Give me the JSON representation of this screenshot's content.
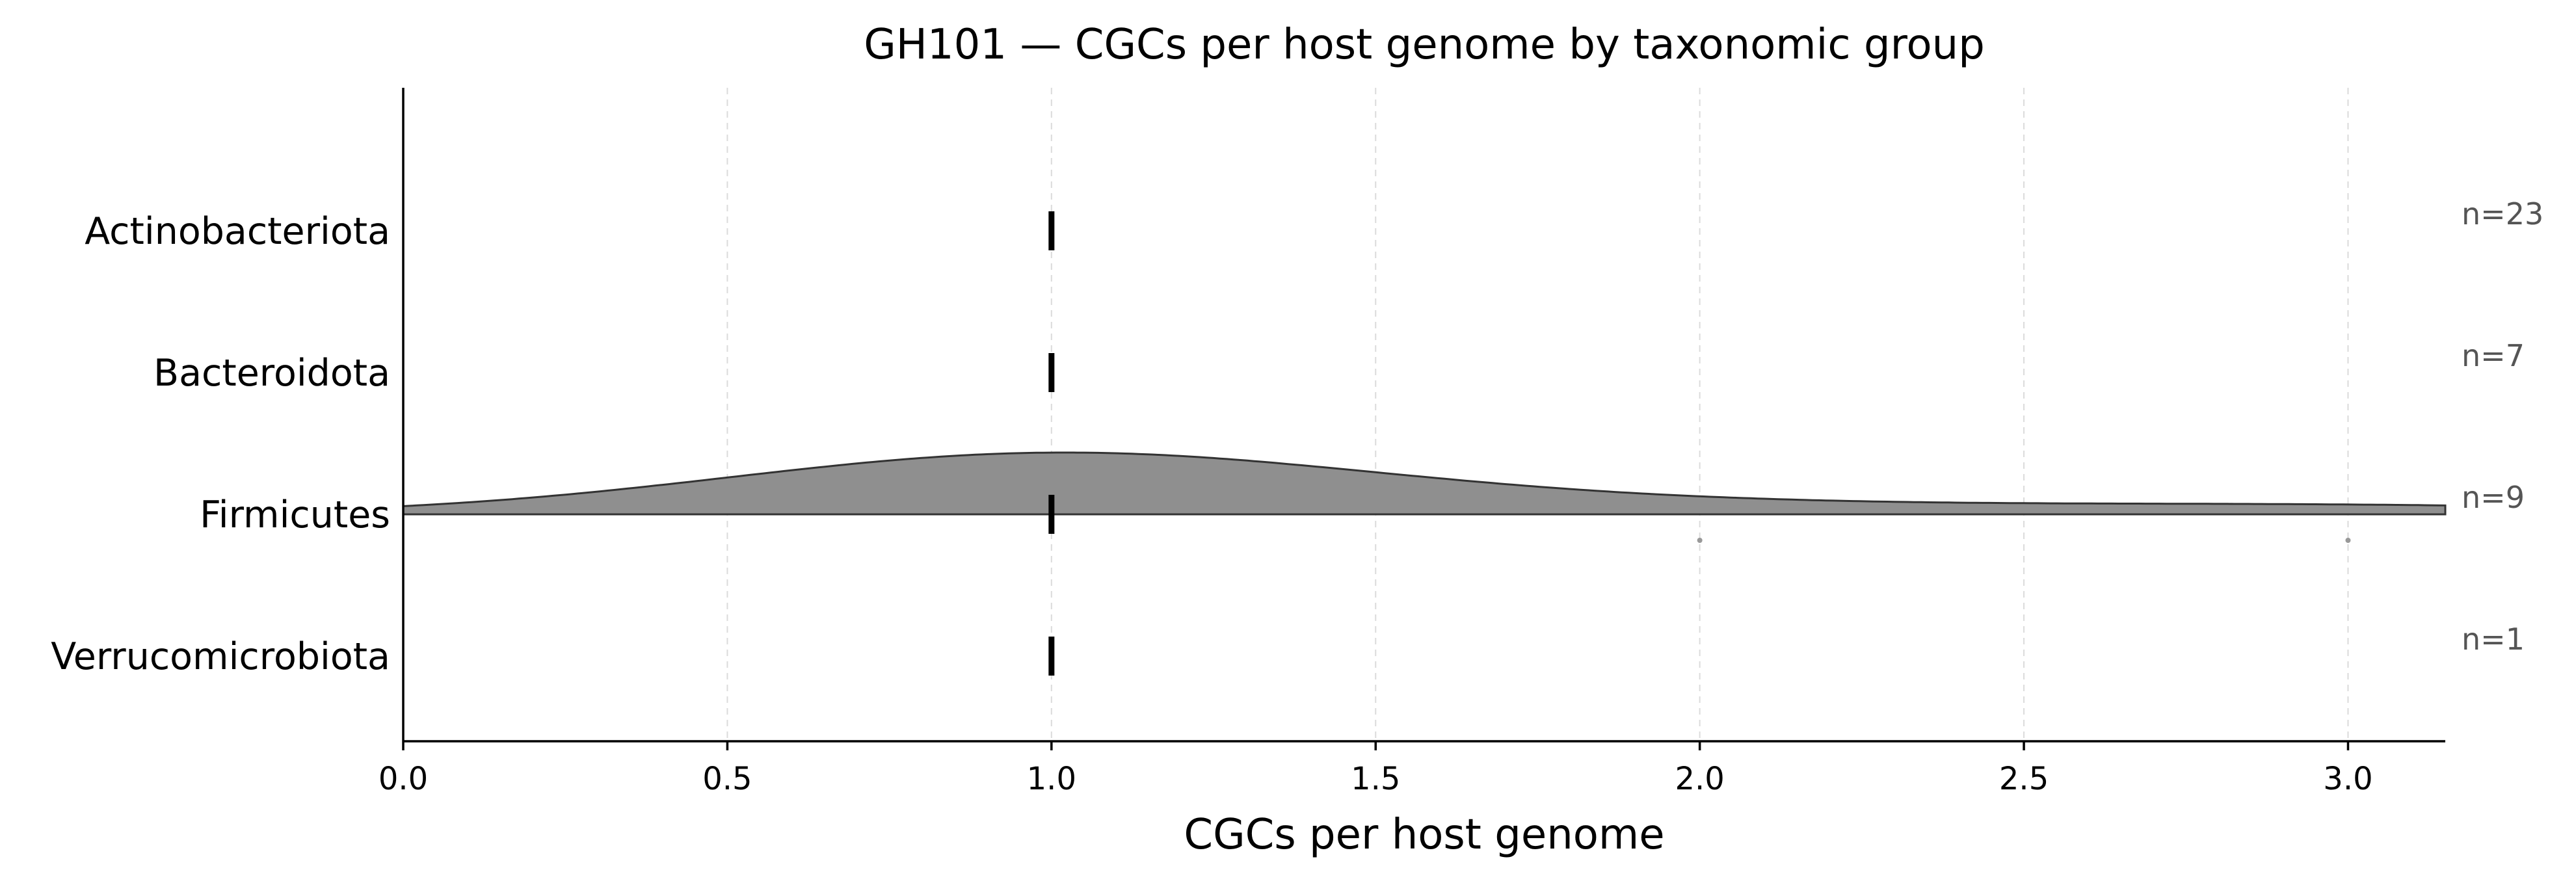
{
  "chart_data": {
    "type": "ridgeline",
    "title": "GH101 — CGCs per host genome by taxonomic group",
    "xlabel": "CGCs per host genome",
    "ylabel": "",
    "xlim": [
      0,
      3.15
    ],
    "xticks": [
      0.0,
      0.5,
      1.0,
      1.5,
      2.0,
      2.5,
      3.0
    ],
    "xtick_labels": [
      "0.0",
      "0.5",
      "1.0",
      "1.5",
      "2.0",
      "2.5",
      "3.0"
    ],
    "grid": "vertical dashed",
    "colors": {
      "ridge_fill": "#8f8f8f",
      "ridge_edge": "#333333",
      "median": "#000000",
      "point": "#999999",
      "n_label": "#555555"
    },
    "groups": [
      {
        "name": "Actinobacteriota",
        "n": 23,
        "n_label": "n=23",
        "median": 1.0,
        "values": []
      },
      {
        "name": "Bacteroidota",
        "n": 7,
        "n_label": "n=7",
        "median": 1.0,
        "values": []
      },
      {
        "name": "Firmicutes",
        "n": 9,
        "n_label": "n=9",
        "median": 1.0,
        "values": [
          1,
          1,
          1,
          1,
          1,
          1,
          1,
          2,
          3
        ]
      },
      {
        "name": "Verrucomicrobiota",
        "n": 1,
        "n_label": "n=1",
        "median": 1.0,
        "values": []
      }
    ]
  }
}
